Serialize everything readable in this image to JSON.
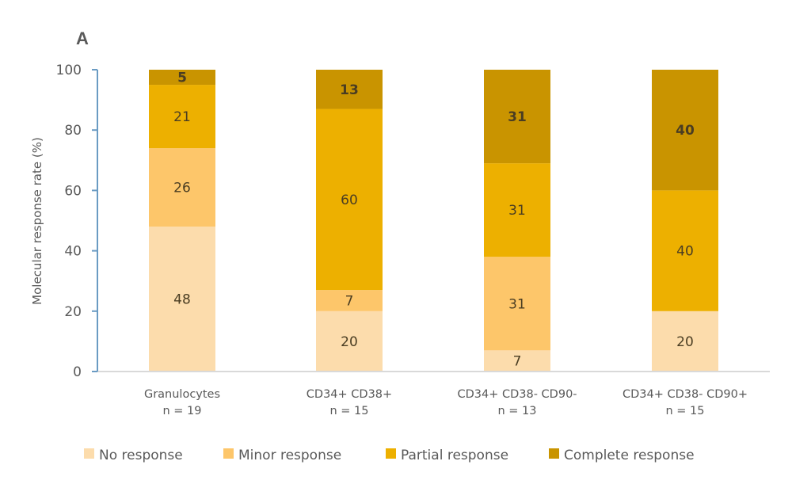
{
  "chart_data": {
    "type": "bar",
    "stacked": true,
    "panel_label": "A",
    "title": "",
    "xlabel": "",
    "ylabel": "Molecular response rate (%)",
    "ylim": [
      0,
      100
    ],
    "yticks": [
      0,
      20,
      40,
      60,
      80,
      100
    ],
    "grid": false,
    "legend_position": "bottom",
    "categories": [
      {
        "name": "Granulocytes",
        "n_label": "n = 19"
      },
      {
        "name": "CD34+ CD38+",
        "n_label": "n = 15"
      },
      {
        "name": "CD34+ CD38- CD90-",
        "n_label": "n = 13"
      },
      {
        "name": "CD34+ CD38- CD90+",
        "n_label": "n = 15"
      }
    ],
    "series": [
      {
        "name": "No response",
        "color": "#fcdcac",
        "values": [
          48,
          20,
          7,
          20
        ],
        "bold_labels": false
      },
      {
        "name": "Minor response",
        "color": "#fdc66a",
        "values": [
          26,
          7,
          31,
          0
        ],
        "bold_labels": false
      },
      {
        "name": "Partial response",
        "color": "#edb000",
        "values": [
          21,
          60,
          31,
          40
        ],
        "bold_labels": false
      },
      {
        "name": "Complete response",
        "color": "#c99400",
        "values": [
          5,
          13,
          31,
          40
        ],
        "bold_labels": true
      }
    ],
    "axis_color": "#6a9bc3"
  }
}
